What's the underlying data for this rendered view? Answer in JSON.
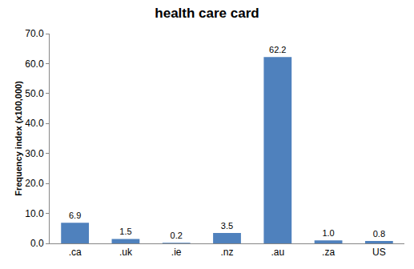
{
  "chart_data": {
    "type": "bar",
    "title": "health care card",
    "y_label": "Frequency index (x100,000)",
    "categories": [
      ".ca",
      ".uk",
      ".ie",
      ".nz",
      ".au",
      ".za",
      "US"
    ],
    "values": [
      6.9,
      1.5,
      0.2,
      3.5,
      62.2,
      1.0,
      0.8
    ],
    "value_labels": [
      "6.9",
      "1.5",
      "0.2",
      "3.5",
      "62.2",
      "1.0",
      "0.8"
    ],
    "color": "#4f81bd",
    "ylim": [
      0,
      70
    ],
    "yticks": [
      {
        "value": 0,
        "label": "0.0"
      },
      {
        "value": 10,
        "label": "10.0"
      },
      {
        "value": 20,
        "label": "20.0"
      },
      {
        "value": 30,
        "label": "30.0"
      },
      {
        "value": 40,
        "label": "40.0"
      },
      {
        "value": 50,
        "label": "50.0"
      },
      {
        "value": 60,
        "label": "60.0"
      },
      {
        "value": 70,
        "label": "70.0"
      }
    ],
    "grid": false,
    "data_labels": true
  }
}
